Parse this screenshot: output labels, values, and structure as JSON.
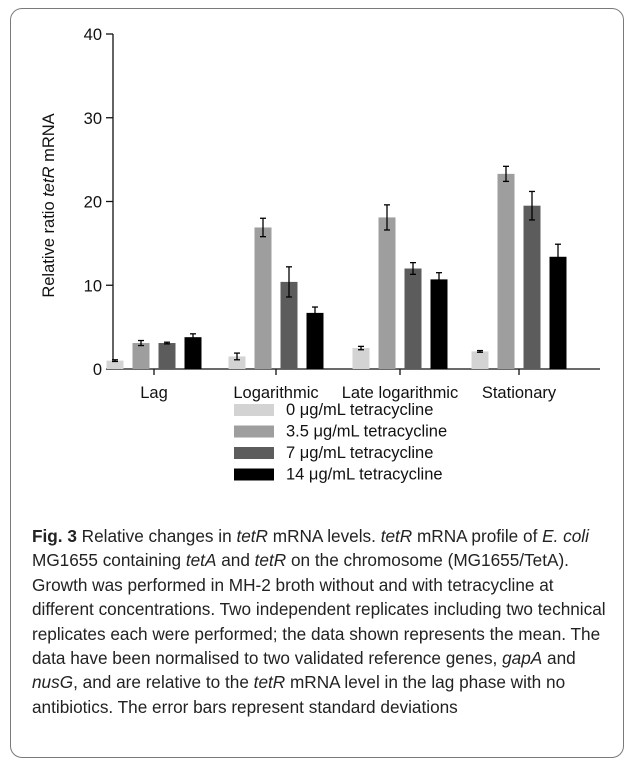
{
  "chart_data": {
    "type": "bar",
    "ylabel_parts": [
      "Relative ratio ",
      "tetR",
      " mRNA"
    ],
    "ylim": [
      0,
      40
    ],
    "yticks": [
      0,
      10,
      20,
      30,
      40
    ],
    "categories": [
      "Lag",
      "Logarithmic",
      "Late logarithmic",
      "Stationary"
    ],
    "series": [
      {
        "name": "0 μg/mL tetracycline",
        "color": "#d3d3d3",
        "values": [
          1.0,
          1.5,
          2.5,
          2.1
        ],
        "errors": [
          0.1,
          0.4,
          0.2,
          0.1
        ]
      },
      {
        "name": "3.5 μg/mL tetracycline",
        "color": "#9e9e9e",
        "values": [
          3.1,
          16.9,
          18.1,
          23.3
        ],
        "errors": [
          0.3,
          1.1,
          1.5,
          0.9
        ]
      },
      {
        "name": "7 μg/mL tetracycline",
        "color": "#5c5c5c",
        "values": [
          3.1,
          10.4,
          12.0,
          19.5
        ],
        "errors": [
          0.1,
          1.8,
          0.7,
          1.7
        ]
      },
      {
        "name": "14 μg/mL tetracycline",
        "color": "#000000",
        "values": [
          3.8,
          6.7,
          10.7,
          13.4
        ],
        "errors": [
          0.4,
          0.7,
          0.8,
          1.5
        ]
      }
    ],
    "legend_position": "bottom"
  },
  "caption": {
    "label": "Fig. 3",
    "segments": [
      {
        "t": " Relative changes in ",
        "i": false
      },
      {
        "t": "tetR",
        "i": true
      },
      {
        "t": " mRNA levels. ",
        "i": false
      },
      {
        "t": "tetR",
        "i": true
      },
      {
        "t": " mRNA profile of ",
        "i": false
      },
      {
        "t": "E. coli",
        "i": true
      },
      {
        "t": " MG1655 containing ",
        "i": false
      },
      {
        "t": "tetA",
        "i": true
      },
      {
        "t": " and ",
        "i": false
      },
      {
        "t": "tetR",
        "i": true
      },
      {
        "t": " on the chromosome (MG1655/TetA). Growth was performed in MH-2 broth without and with tetracycline at different concentrations. Two independent replicates including two technical replicates each were performed; the data shown represents the mean. The data have been normalised to two validated reference genes, ",
        "i": false
      },
      {
        "t": "gapA",
        "i": true
      },
      {
        "t": " and ",
        "i": false
      },
      {
        "t": "nusG",
        "i": true
      },
      {
        "t": ", and are relative to the ",
        "i": false
      },
      {
        "t": "tetR",
        "i": true
      },
      {
        "t": " mRNA level in the lag phase with no antibiotics. The error bars represent standard deviations",
        "i": false
      }
    ]
  }
}
